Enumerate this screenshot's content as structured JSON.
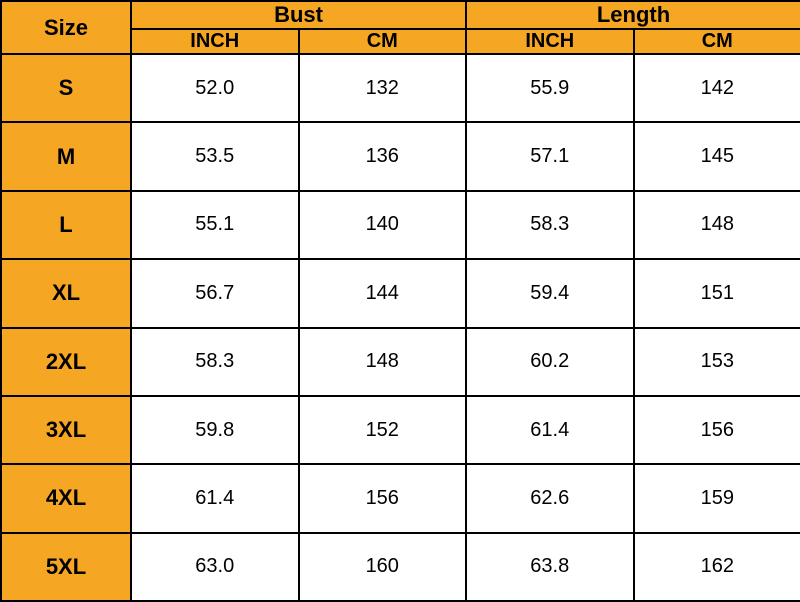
{
  "table": {
    "type": "table",
    "header_bg": "#f5a623",
    "cell_bg": "#ffffff",
    "border_color": "#000000",
    "text_color": "#000000",
    "header_fontsize": 22,
    "data_fontsize": 20,
    "font_family": "Arial",
    "size_label": "Size",
    "groups": [
      {
        "label": "Bust",
        "sub": [
          "INCH",
          "CM"
        ]
      },
      {
        "label": "Length",
        "sub": [
          "INCH",
          "CM"
        ]
      }
    ],
    "rows": [
      {
        "size": "S",
        "bust_inch": "52.0",
        "bust_cm": "132",
        "length_inch": "55.9",
        "length_cm": "142"
      },
      {
        "size": "M",
        "bust_inch": "53.5",
        "bust_cm": "136",
        "length_inch": "57.1",
        "length_cm": "145"
      },
      {
        "size": "L",
        "bust_inch": "55.1",
        "bust_cm": "140",
        "length_inch": "58.3",
        "length_cm": "148"
      },
      {
        "size": "XL",
        "bust_inch": "56.7",
        "bust_cm": "144",
        "length_inch": "59.4",
        "length_cm": "151"
      },
      {
        "size": "2XL",
        "bust_inch": "58.3",
        "bust_cm": "148",
        "length_inch": "60.2",
        "length_cm": "153"
      },
      {
        "size": "3XL",
        "bust_inch": "59.8",
        "bust_cm": "152",
        "length_inch": "61.4",
        "length_cm": "156"
      },
      {
        "size": "4XL",
        "bust_inch": "61.4",
        "bust_cm": "156",
        "length_inch": "62.6",
        "length_cm": "159"
      },
      {
        "size": "5XL",
        "bust_inch": "63.0",
        "bust_cm": "160",
        "length_inch": "63.8",
        "length_cm": "162"
      }
    ]
  }
}
